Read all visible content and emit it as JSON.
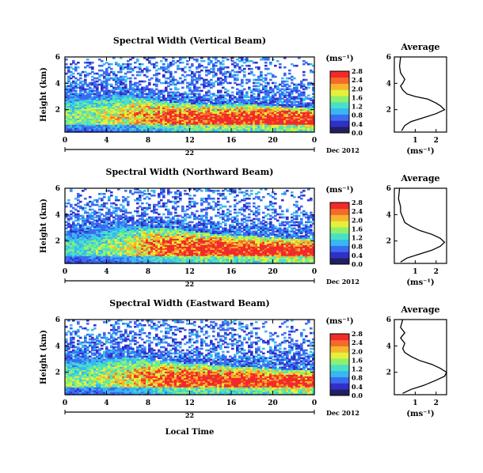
{
  "figure": {
    "xlabel": "Local Time",
    "date_label": "Dec 2012",
    "day_label": "22",
    "avg_xlabel": "(ms⁻¹)",
    "cb_unit": "(ms⁻¹)",
    "colormap": [
      "#202060",
      "#3030c8",
      "#3a6cf0",
      "#39b7f0",
      "#4ae0c8",
      "#8ef06e",
      "#e6f03a",
      "#f7b52c",
      "#f46a2a",
      "#f22a2a"
    ]
  },
  "chart_data": [
    {
      "type": "heatmap",
      "title": "Spectral Width (Vertical Beam)",
      "ylabel": "Height (km)",
      "xlabel": "",
      "x_ticks": [
        "0",
        "4",
        "8",
        "12",
        "16",
        "20",
        "0"
      ],
      "xlim": [
        0,
        24
      ],
      "y_ticks": [
        "2",
        "4",
        "6"
      ],
      "ylim": [
        0.3,
        6
      ],
      "cb_ticks": [
        "0.0",
        "0.4",
        "0.8",
        "1.2",
        "1.6",
        "2.0",
        "2.4",
        "2.8"
      ],
      "clim": [
        0,
        3.0
      ],
      "z_description_hours_vs_height": [
        {
          "hour": 2,
          "low_level_width": 1.4,
          "top_km": 3.0
        },
        {
          "hour": 6,
          "low_level_width": 1.8,
          "top_km": 3.2
        },
        {
          "hour": 10,
          "low_level_width": 2.4,
          "top_km": 2.6
        },
        {
          "hour": 14,
          "low_level_width": 2.6,
          "top_km": 2.4
        },
        {
          "hour": 18,
          "low_level_width": 2.6,
          "top_km": 2.4
        },
        {
          "hour": 22,
          "low_level_width": 2.8,
          "top_km": 2.2
        }
      ]
    },
    {
      "type": "line",
      "title": "Average",
      "x_ticks": [
        "1",
        "2"
      ],
      "xlim": [
        0,
        2.5
      ],
      "y_ticks": [
        "2",
        "4",
        "6"
      ],
      "ylim": [
        0.3,
        6
      ],
      "x": [
        0.35,
        0.5,
        0.8,
        1.4,
        2.0,
        2.4,
        2.2,
        2.0,
        1.6,
        1.0,
        0.6,
        0.4,
        0.3,
        0.4,
        0.5,
        0.3,
        0.25,
        0.3
      ],
      "y": [
        0.4,
        0.8,
        1.1,
        1.4,
        1.7,
        2.0,
        2.3,
        2.5,
        2.8,
        3.0,
        3.2,
        3.5,
        3.8,
        4.0,
        4.3,
        4.8,
        5.3,
        6.0
      ]
    },
    {
      "type": "heatmap",
      "title": "Spectral Width (Northward Beam)",
      "ylabel": "Height (km)",
      "xlabel": "",
      "x_ticks": [
        "0",
        "4",
        "8",
        "12",
        "16",
        "20",
        "0"
      ],
      "xlim": [
        0,
        24
      ],
      "y_ticks": [
        "2",
        "4",
        "6"
      ],
      "ylim": [
        0.3,
        6
      ],
      "cb_ticks": [
        "0.0",
        "0.4",
        "0.8",
        "1.2",
        "1.6",
        "2.0",
        "2.4",
        "2.8"
      ],
      "clim": [
        0,
        3.0
      ],
      "z_description_hours_vs_height": [
        {
          "hour": 2,
          "low_level_width": 1.2,
          "top_km": 2.8
        },
        {
          "hour": 6,
          "low_level_width": 1.6,
          "top_km": 3.2
        },
        {
          "hour": 10,
          "low_level_width": 2.4,
          "top_km": 3.0
        },
        {
          "hour": 14,
          "low_level_width": 2.6,
          "top_km": 2.6
        },
        {
          "hour": 18,
          "low_level_width": 2.6,
          "top_km": 2.4
        },
        {
          "hour": 22,
          "low_level_width": 2.8,
          "top_km": 2.2
        }
      ]
    },
    {
      "type": "line",
      "title": "Average",
      "x_ticks": [
        "1",
        "2"
      ],
      "xlim": [
        0,
        2.5
      ],
      "y_ticks": [
        "2",
        "4",
        "6"
      ],
      "ylim": [
        0.3,
        6
      ],
      "x": [
        0.3,
        0.6,
        1.2,
        1.8,
        2.2,
        2.4,
        2.2,
        1.8,
        1.2,
        0.8,
        0.5,
        0.4,
        0.3,
        0.3,
        0.2,
        0.25
      ],
      "y": [
        0.4,
        0.7,
        1.0,
        1.3,
        1.6,
        1.9,
        2.2,
        2.5,
        2.8,
        3.1,
        3.4,
        3.8,
        4.2,
        4.6,
        5.2,
        6.0
      ]
    },
    {
      "type": "heatmap",
      "title": "Spectral Width (Eastward Beam)",
      "ylabel": "Height (km)",
      "xlabel": "Local Time",
      "x_ticks": [
        "0",
        "4",
        "8",
        "12",
        "16",
        "20",
        "0"
      ],
      "xlim": [
        0,
        24
      ],
      "y_ticks": [
        "2",
        "4",
        "6"
      ],
      "ylim": [
        0.3,
        6
      ],
      "cb_ticks": [
        "0.0",
        "0.4",
        "0.8",
        "1.2",
        "1.6",
        "2.0",
        "2.4",
        "2.8"
      ],
      "clim": [
        0,
        3.0
      ],
      "z_description_hours_vs_height": [
        {
          "hour": 2,
          "low_level_width": 1.4,
          "top_km": 3.0
        },
        {
          "hour": 6,
          "low_level_width": 1.8,
          "top_km": 3.2
        },
        {
          "hour": 10,
          "low_level_width": 2.4,
          "top_km": 2.8
        },
        {
          "hour": 14,
          "low_level_width": 2.6,
          "top_km": 2.6
        },
        {
          "hour": 18,
          "low_level_width": 2.6,
          "top_km": 2.4
        },
        {
          "hour": 22,
          "low_level_width": 2.8,
          "top_km": 2.2
        }
      ]
    },
    {
      "type": "line",
      "title": "Average",
      "x_ticks": [
        "1",
        "2"
      ],
      "xlim": [
        0,
        2.5
      ],
      "y_ticks": [
        "2",
        "4",
        "6"
      ],
      "ylim": [
        0.3,
        6
      ],
      "x": [
        0.4,
        0.8,
        1.4,
        2.0,
        2.4,
        2.5,
        2.2,
        1.8,
        1.2,
        0.8,
        0.5,
        0.4,
        0.5,
        0.3,
        0.5,
        0.3,
        0.4
      ],
      "y": [
        0.4,
        0.7,
        1.0,
        1.4,
        1.7,
        2.0,
        2.3,
        2.6,
        2.9,
        3.2,
        3.5,
        3.8,
        4.2,
        4.6,
        5.0,
        5.4,
        6.0
      ]
    }
  ]
}
